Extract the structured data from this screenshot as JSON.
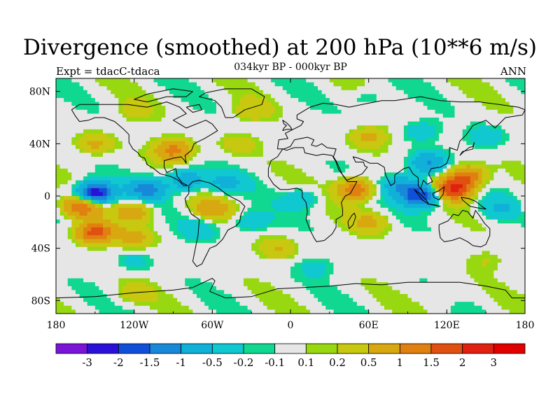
{
  "chart_data": {
    "type": "heatmap",
    "title": "Divergence (smoothed) at 200 hPa (10**6 m/s)",
    "subtitle": "034kyr BP - 000kyr BP",
    "left_label": "Expt = tdacC-tdaca",
    "right_label": "ANN",
    "x_ticks": [
      {
        "value": -180,
        "label": "180"
      },
      {
        "value": -120,
        "label": "120W"
      },
      {
        "value": -60,
        "label": "60W"
      },
      {
        "value": 0,
        "label": "0"
      },
      {
        "value": 60,
        "label": "60E"
      },
      {
        "value": 120,
        "label": "120E"
      },
      {
        "value": 180,
        "label": "180"
      }
    ],
    "y_ticks": [
      {
        "value": 80,
        "label": "80N"
      },
      {
        "value": 40,
        "label": "40N"
      },
      {
        "value": 0,
        "label": "0"
      },
      {
        "value": -40,
        "label": "40S"
      },
      {
        "value": -80,
        "label": "80S"
      }
    ],
    "xlim": [
      -180,
      180
    ],
    "ylim": [
      -90,
      90
    ],
    "colorbar": {
      "colors": [
        "#7a14d6",
        "#2a10d8",
        "#1050d8",
        "#1888d8",
        "#10b0d8",
        "#10c8d0",
        "#10d890",
        "#e6e6e6",
        "#98d810",
        "#c8c810",
        "#d8a810",
        "#e08010",
        "#e05010",
        "#e02010",
        "#e00000"
      ],
      "labels": [
        "-3",
        "-2",
        "-1.5",
        "-1",
        "-0.5",
        "-0.2",
        "-0.1",
        "0.1",
        "0.2",
        "0.5",
        "1",
        "1.5",
        "2",
        "3"
      ]
    },
    "anomaly_features": [
      {
        "lon": -150,
        "lat": 2,
        "value": -2.5
      },
      {
        "lon": -110,
        "lat": 5,
        "value": -1.2
      },
      {
        "lon": -80,
        "lat": 12,
        "value": -1.0
      },
      {
        "lon": -50,
        "lat": 10,
        "value": -0.6
      },
      {
        "lon": -160,
        "lat": -8,
        "value": 1.6
      },
      {
        "lon": -120,
        "lat": -12,
        "value": 0.8
      },
      {
        "lon": -150,
        "lat": -28,
        "value": 1.8
      },
      {
        "lon": -120,
        "lat": -32,
        "value": 0.6
      },
      {
        "lon": -90,
        "lat": 35,
        "value": 1.2
      },
      {
        "lon": -150,
        "lat": 40,
        "value": 0.6
      },
      {
        "lon": -40,
        "lat": 40,
        "value": 0.4
      },
      {
        "lon": -60,
        "lat": -10,
        "value": 0.8
      },
      {
        "lon": -70,
        "lat": -25,
        "value": -0.4
      },
      {
        "lon": -30,
        "lat": -20,
        "value": -0.5
      },
      {
        "lon": -10,
        "lat": -40,
        "value": 0.5
      },
      {
        "lon": 10,
        "lat": -2,
        "value": -0.5
      },
      {
        "lon": 50,
        "lat": 5,
        "value": 1.4
      },
      {
        "lon": 60,
        "lat": -20,
        "value": 0.6
      },
      {
        "lon": 85,
        "lat": 8,
        "value": -1.0
      },
      {
        "lon": 100,
        "lat": 0,
        "value": -2.0
      },
      {
        "lon": 105,
        "lat": 25,
        "value": -1.0
      },
      {
        "lon": 125,
        "lat": 5,
        "value": 2.0
      },
      {
        "lon": 135,
        "lat": 15,
        "value": 1.5
      },
      {
        "lon": 160,
        "lat": -10,
        "value": -0.5
      },
      {
        "lon": 150,
        "lat": 45,
        "value": -0.5
      },
      {
        "lon": 60,
        "lat": 45,
        "value": 0.6
      },
      {
        "lon": 100,
        "lat": 50,
        "value": -0.4
      },
      {
        "lon": -120,
        "lat": 65,
        "value": 0.3
      },
      {
        "lon": -30,
        "lat": 65,
        "value": 0.4
      },
      {
        "lon": 60,
        "lat": 75,
        "value": -0.3
      },
      {
        "lon": -120,
        "lat": -50,
        "value": -0.3
      },
      {
        "lon": 20,
        "lat": -55,
        "value": -0.3
      },
      {
        "lon": 150,
        "lat": -50,
        "value": 0.2
      },
      {
        "lon": -120,
        "lat": -75,
        "value": 0.3
      },
      {
        "lon": 120,
        "lat": -75,
        "value": 0.2
      }
    ]
  }
}
